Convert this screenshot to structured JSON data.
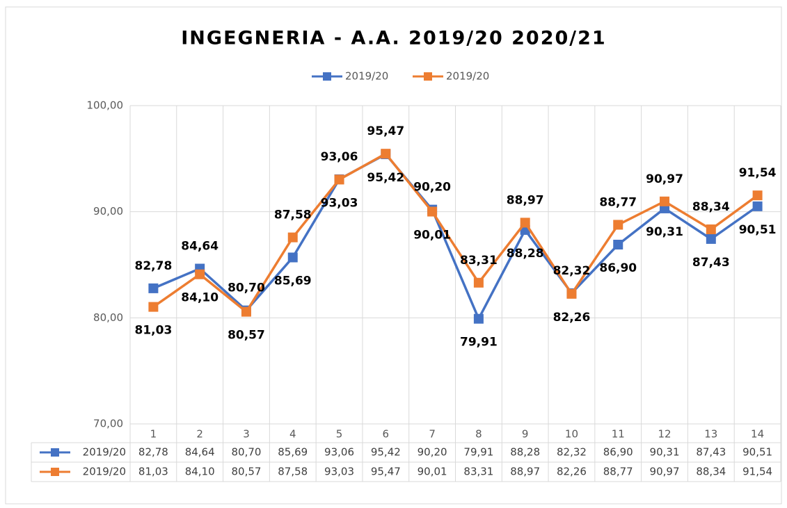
{
  "chart_data": {
    "type": "line",
    "title": "INGEGNERIA  - A.A. 2019/20 2020/21",
    "categories": [
      "1",
      "2",
      "3",
      "4",
      "5",
      "6",
      "7",
      "8",
      "9",
      "10",
      "11",
      "12",
      "13",
      "14"
    ],
    "series": [
      {
        "name": "2019/20",
        "color": "#4472c4",
        "values": [
          82.78,
          84.64,
          80.7,
          85.69,
          93.06,
          95.42,
          90.2,
          79.91,
          88.28,
          82.32,
          86.9,
          90.31,
          87.43,
          90.51
        ],
        "value_labels": [
          "82,78",
          "84,64",
          "80,70",
          "85,69",
          "93,06",
          "95,42",
          "90,20",
          "79,91",
          "88,28",
          "82,32",
          "86,90",
          "90,31",
          "87,43",
          "90,51"
        ]
      },
      {
        "name": "2019/20",
        "color": "#ed7d31",
        "values": [
          81.03,
          84.1,
          80.57,
          87.58,
          93.03,
          95.47,
          90.01,
          83.31,
          88.97,
          82.26,
          88.77,
          90.97,
          88.34,
          91.54
        ],
        "value_labels": [
          "81,03",
          "84,10",
          "80,57",
          "87,58",
          "93,03",
          "95,47",
          "90,01",
          "83,31",
          "88,97",
          "82,26",
          "88,77",
          "90,97",
          "88,34",
          "91,54"
        ]
      }
    ],
    "ylim": [
      70,
      100
    ],
    "yticks": [
      {
        "value": 70,
        "label": "70,00"
      },
      {
        "value": 80,
        "label": "80,00"
      },
      {
        "value": 90,
        "label": "90,00"
      },
      {
        "value": 100,
        "label": "100,00"
      }
    ],
    "grid": true,
    "legend": "top"
  }
}
